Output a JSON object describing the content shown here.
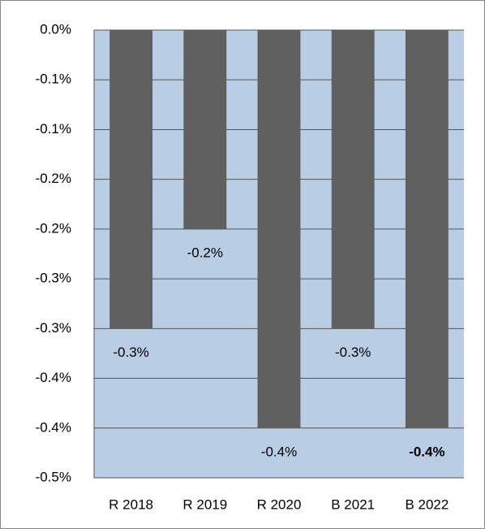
{
  "chart_data": {
    "type": "bar",
    "categories": [
      "R 2018",
      "R 2019",
      "R 2020",
      "B 2021",
      "B 2022"
    ],
    "values": [
      -0.3,
      -0.2,
      -0.4,
      -0.3,
      -0.4
    ],
    "value_labels": [
      "-0.3%",
      "-0.2%",
      "-0.4%",
      "-0.3%",
      "-0.4%"
    ],
    "value_label_bold": [
      false,
      false,
      false,
      false,
      true
    ],
    "color": "#606060",
    "plot_background": "#b9cde5",
    "ylim": [
      -0.45,
      0
    ],
    "yticks": [
      {
        "value": 0,
        "label": "0.0%"
      },
      {
        "value": -0.05,
        "label": "-0.1%"
      },
      {
        "value": -0.1,
        "label": "-0.1%"
      },
      {
        "value": -0.15,
        "label": "-0.2%"
      },
      {
        "value": -0.2,
        "label": "-0.2%"
      },
      {
        "value": -0.25,
        "label": "-0.3%"
      },
      {
        "value": -0.3,
        "label": "-0.3%"
      },
      {
        "value": -0.35,
        "label": "-0.4%"
      },
      {
        "value": -0.4,
        "label": "-0.4%"
      },
      {
        "value": -0.45,
        "label": "-0.5%"
      }
    ],
    "grid": true
  }
}
